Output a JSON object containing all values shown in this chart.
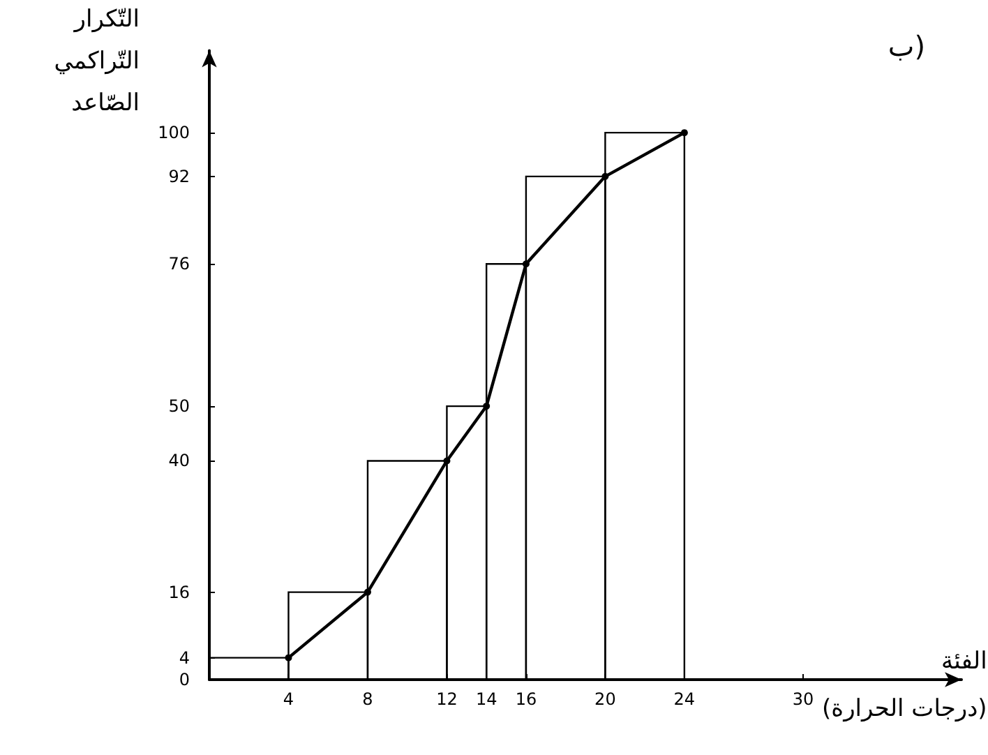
{
  "chart_data": {
    "type": "histogram",
    "title": "ب)",
    "xlabel": "الفئة\n(درجات الحرارة)",
    "ylabel": "التّكرار\nالتّراكمي\nالصّاعد",
    "bins": [
      0,
      4,
      8,
      12,
      14,
      16,
      20,
      24
    ],
    "values": [
      4,
      16,
      40,
      50,
      76,
      92,
      100
    ],
    "color": "#000000",
    "series": [
      {
        "type": "line",
        "color": "#000000",
        "x": [
          4,
          8,
          12,
          14,
          16,
          20,
          24
        ],
        "values": [
          4,
          16,
          40,
          50,
          76,
          92,
          100
        ]
      }
    ],
    "marker": "circle",
    "line_style": "solid",
    "xlim": [
      0,
      38
    ],
    "xticks": [
      4,
      8,
      12,
      14,
      16,
      20,
      24,
      30
    ],
    "ylim": [
      0,
      115
    ],
    "yticks": [
      0,
      4,
      16,
      40,
      50,
      76,
      92,
      100
    ]
  }
}
